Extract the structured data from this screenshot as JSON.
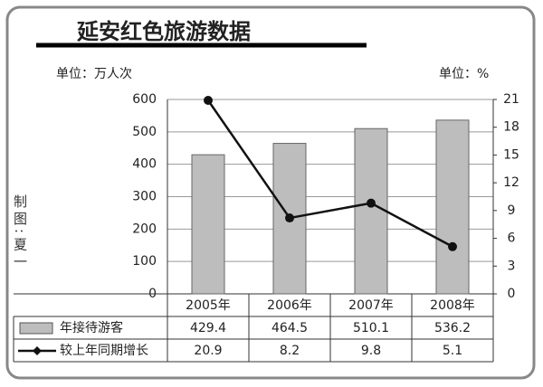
{
  "chart_data": {
    "type": "bar_line",
    "title": "延安红色旅游数据",
    "y_label": "单位：万人次",
    "y2_label": "单位：%",
    "credit": "制图:夏一",
    "categories": [
      "2005年",
      "2006年",
      "2007年",
      "2008年"
    ],
    "series": [
      {
        "name": "年接待游客",
        "type": "bar",
        "color": "#bdbdbd",
        "values": [
          429.4,
          464.5,
          510.1,
          536.2
        ]
      },
      {
        "name": "较上年同期增长",
        "type": "line",
        "axis": "y2",
        "color": "#111111",
        "values": [
          20.9,
          8.2,
          9.8,
          5.1
        ]
      }
    ],
    "ylim": [
      0,
      600
    ],
    "yticks": [
      0,
      100,
      200,
      300,
      400,
      500,
      600
    ],
    "y2lim": [
      0,
      21
    ],
    "y2ticks": [
      0,
      3,
      6,
      9,
      12,
      15,
      18,
      21
    ],
    "grid": true
  }
}
